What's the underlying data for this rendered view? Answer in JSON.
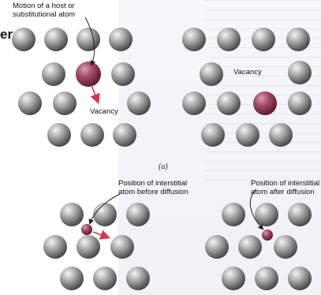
{
  "labels": {
    "motion": "Motion of a host or\nsubstitutional atom",
    "vacancy_left": "Vacancy",
    "vacancy_right": "Vacancy",
    "interstitial_before": "Position of interstitial\natom before diffusion",
    "interstitial_after": "Position of interstitial\natom after diffusion",
    "caption_a": "(a)",
    "edge_letter": "er"
  },
  "colors": {
    "host_atom_light": "#f4f4f4",
    "host_atom_mid": "#a9a9a9",
    "host_atom_dark": "#4a4a4a",
    "substitutional_atom_light": "#d9a0b0",
    "substitutional_atom_mid": "#a44a64",
    "substitutional_atom_dark": "#5a1f30",
    "arrow_red": "#d4374b",
    "leader_line": "#222222"
  }
}
